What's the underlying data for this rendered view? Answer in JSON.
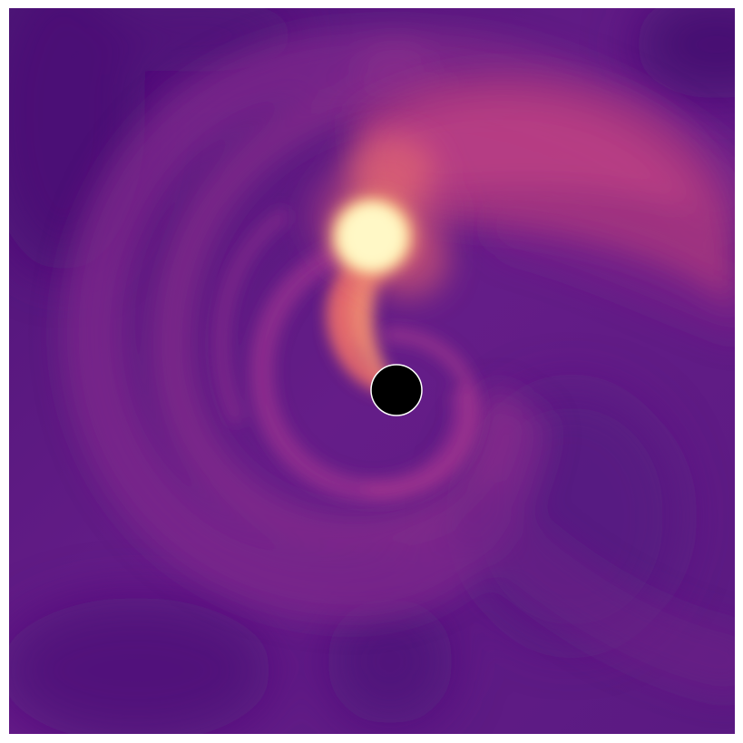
{
  "image": {
    "colormap": "magma",
    "colors": {
      "background_deep": "#4a1378",
      "background": "#5e1b86",
      "arm_mid": "#8c2d8c",
      "arm_bright": "#b83c88",
      "hot": "#f07a60",
      "core": "#fff7c0",
      "black_hole_fill": "#000000",
      "black_hole_outline": "#ffffff"
    },
    "objects": [
      "accretion-spiral",
      "bright-clump",
      "black-hole"
    ]
  }
}
